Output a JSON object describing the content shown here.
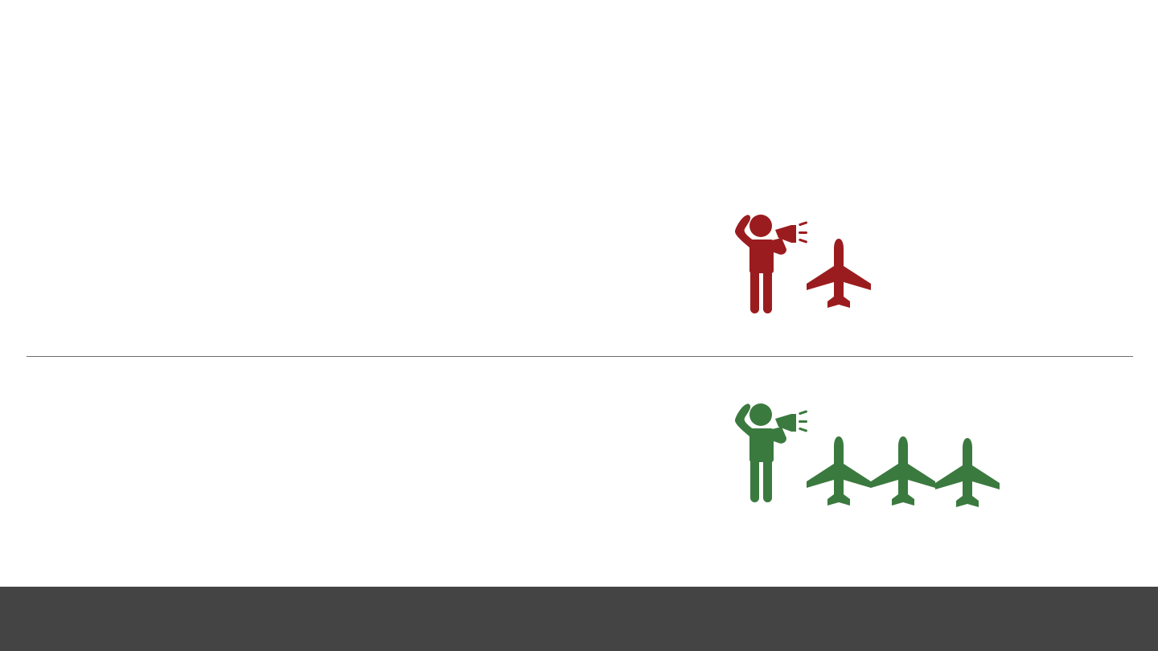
{
  "colors": {
    "negative": "#9b1c1f",
    "positive": "#3b7a3f",
    "divider": "#6e6e6e",
    "footer": "#444444",
    "background": "#ffffff"
  },
  "icons": {
    "top_row": [
      "person-megaphone-icon",
      "airplane-icon"
    ],
    "bottom_row": [
      "person-megaphone-icon",
      "airplane-icon",
      "airplane-icon",
      "airplane-icon"
    ]
  },
  "rows": {
    "top": {
      "airplane_count": 1,
      "color": "negative"
    },
    "bottom": {
      "airplane_count": 3,
      "color": "positive"
    }
  }
}
